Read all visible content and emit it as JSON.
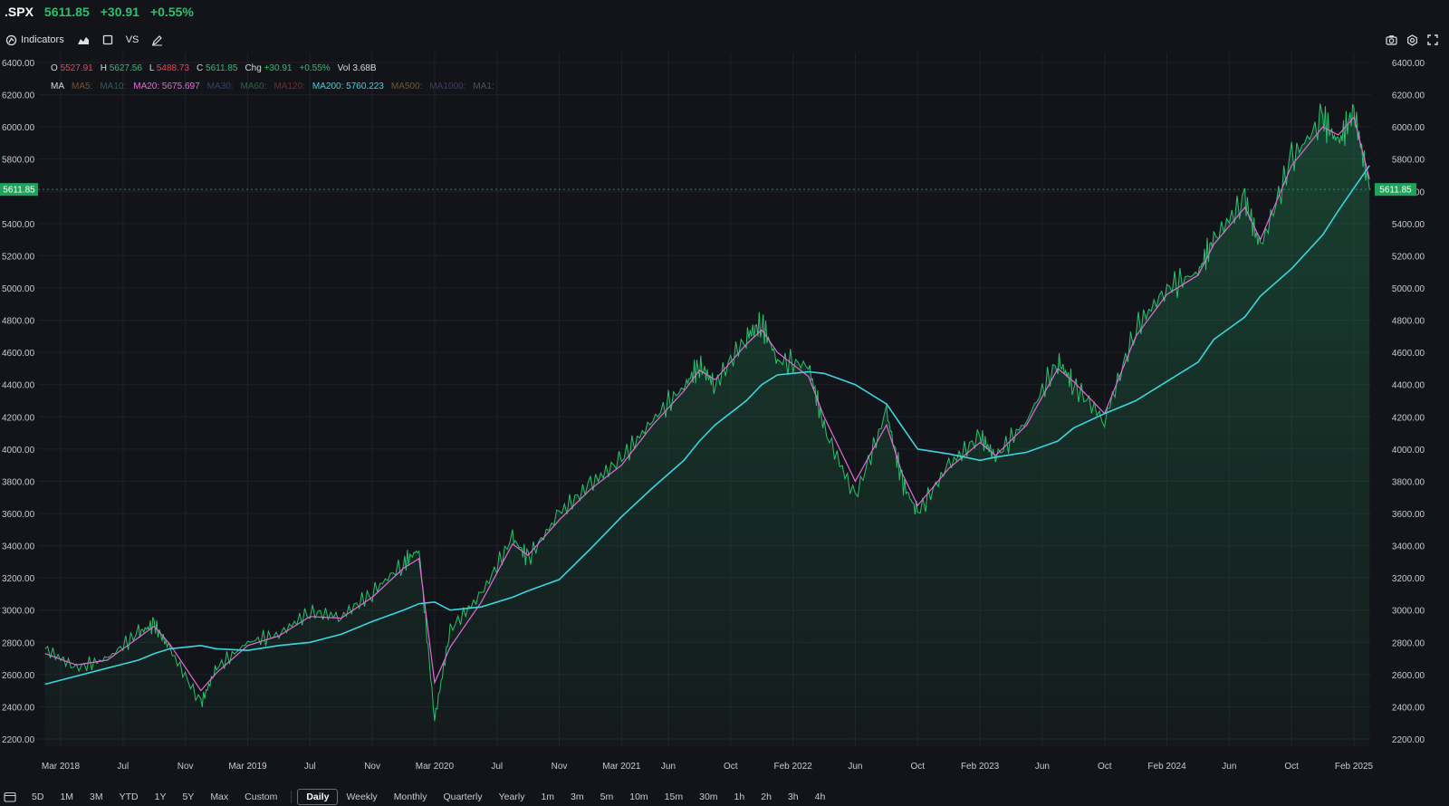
{
  "header": {
    "symbol": ".SPX",
    "price": "5611.85",
    "change": "+30.91",
    "pct": "+0.55%"
  },
  "toolbar": {
    "indicators": "Indicators",
    "vs": "VS"
  },
  "ohlc": {
    "o_label": "O",
    "o": "5527.91",
    "h_label": "H",
    "h": "5627.56",
    "l_label": "L",
    "l": "5488.73",
    "c_label": "C",
    "c": "5611.85",
    "chg_label": "Chg",
    "chg": "+30.91",
    "pct": "+0.55%",
    "vol_label": "Vol",
    "vol": "3.68B"
  },
  "ma_legend": {
    "label": "MA",
    "items": [
      {
        "text": "MA5:",
        "color": "#e8a13c",
        "active": false
      },
      {
        "text": "MA10:",
        "color": "#34b3c4",
        "active": false
      },
      {
        "text": "MA20: 5675.697",
        "color": "#e26bd8",
        "active": true
      },
      {
        "text": "MA30:",
        "color": "#4c7fd6",
        "active": false
      },
      {
        "text": "MA60:",
        "color": "#4fbf6b",
        "active": false
      },
      {
        "text": "MA120:",
        "color": "#d9464f",
        "active": false
      },
      {
        "text": "MA200: 5760.223",
        "color": "#39d6e0",
        "active": true
      },
      {
        "text": "MA500:",
        "color": "#d8a64a",
        "active": false
      },
      {
        "text": "MA1000:",
        "color": "#8b5cd6",
        "active": false
      },
      {
        "text": "MA1:",
        "color": "#9a9ca3",
        "active": false
      }
    ]
  },
  "current_price_tag": "5611.85",
  "bottom_bar": {
    "ranges": [
      "5D",
      "1M",
      "3M",
      "YTD",
      "1Y",
      "5Y",
      "Max",
      "Custom"
    ],
    "intervals": [
      "Daily",
      "Weekly",
      "Monthly",
      "Quarterly",
      "Yearly",
      "1m",
      "3m",
      "5m",
      "10m",
      "15m",
      "30m",
      "1h",
      "2h",
      "3h",
      "4h"
    ],
    "active": "Daily"
  },
  "chart_data": {
    "type": "area",
    "ylim": [
      2100,
      6450
    ],
    "y_ticks": [
      "6400.00",
      "6200.00",
      "6000.00",
      "5800.00",
      "5600.00",
      "5400.00",
      "5200.00",
      "5000.00",
      "4800.00",
      "4600.00",
      "4400.00",
      "4200.00",
      "4000.00",
      "3800.00",
      "3600.00",
      "3400.00",
      "3200.00",
      "3000.00",
      "2800.00",
      "2600.00",
      "2400.00",
      "2200.00"
    ],
    "x_ticks": [
      "Mar 2018",
      "Jul",
      "Nov",
      "Mar 2019",
      "Jul",
      "Nov",
      "Mar 2020",
      "Jul",
      "Nov",
      "Mar 2021",
      "Jun",
      "Oct",
      "Feb 2022",
      "Jun",
      "Oct",
      "Feb 2023",
      "Jun",
      "Oct",
      "Feb 2024",
      "Jun",
      "Oct",
      "Feb 2025"
    ],
    "x": [
      "2018-02",
      "2018-04",
      "2018-06",
      "2018-08",
      "2018-09",
      "2018-10",
      "2018-12",
      "2019-01",
      "2019-03",
      "2019-05",
      "2019-07",
      "2019-09",
      "2019-11",
      "2020-01",
      "2020-02",
      "2020-03",
      "2020-04",
      "2020-06",
      "2020-08",
      "2020-09",
      "2020-11",
      "2021-01",
      "2021-03",
      "2021-05",
      "2021-07",
      "2021-08",
      "2021-09",
      "2021-11",
      "2021-12",
      "2022-01",
      "2022-03",
      "2022-04",
      "2022-06",
      "2022-08",
      "2022-09",
      "2022-10",
      "2022-12",
      "2023-02",
      "2023-03",
      "2023-05",
      "2023-07",
      "2023-08",
      "2023-10",
      "2023-12",
      "2024-02",
      "2024-04",
      "2024-05",
      "2024-07",
      "2024-08",
      "2024-10",
      "2024-12",
      "2025-01",
      "2025-02",
      "2025-03"
    ],
    "series": [
      {
        "name": ".SPX",
        "color": "#27c26b",
        "values": [
          2760,
          2640,
          2700,
          2860,
          2910,
          2760,
          2420,
          2640,
          2800,
          2850,
          2990,
          2960,
          3110,
          3290,
          3380,
          2320,
          2880,
          3100,
          3450,
          3320,
          3600,
          3780,
          3940,
          4180,
          4390,
          4520,
          4400,
          4700,
          4780,
          4550,
          4520,
          4130,
          3700,
          4230,
          3800,
          3600,
          3900,
          4080,
          3950,
          4180,
          4550,
          4400,
          4180,
          4750,
          5000,
          5100,
          5300,
          5550,
          5250,
          5800,
          6050,
          5900,
          6100,
          5612
        ]
      },
      {
        "name": "MA20",
        "color": "#e26bd8",
        "values": [
          2730,
          2660,
          2690,
          2830,
          2900,
          2790,
          2500,
          2610,
          2780,
          2840,
          2960,
          2950,
          3080,
          3260,
          3320,
          2550,
          2770,
          3050,
          3410,
          3340,
          3560,
          3750,
          3900,
          4150,
          4360,
          4490,
          4430,
          4650,
          4740,
          4600,
          4450,
          4200,
          3800,
          4150,
          3850,
          3650,
          3880,
          4040,
          3960,
          4150,
          4500,
          4420,
          4220,
          4700,
          4960,
          5080,
          5270,
          5500,
          5300,
          5760,
          6000,
          5950,
          6060,
          5676
        ]
      },
      {
        "name": "MA200",
        "color": "#39d6e0",
        "values": [
          2540,
          2590,
          2640,
          2690,
          2730,
          2760,
          2780,
          2760,
          2750,
          2780,
          2800,
          2850,
          2930,
          3000,
          3040,
          3050,
          3000,
          3020,
          3080,
          3120,
          3190,
          3380,
          3580,
          3760,
          3930,
          4050,
          4150,
          4300,
          4400,
          4460,
          4480,
          4470,
          4400,
          4280,
          4140,
          4000,
          3970,
          3930,
          3950,
          3980,
          4050,
          4130,
          4220,
          4300,
          4420,
          4540,
          4680,
          4820,
          4950,
          5120,
          5330,
          5480,
          5620,
          5760
        ]
      }
    ],
    "last_price": 5611.85,
    "grid": true,
    "legend_position": "top-left"
  }
}
